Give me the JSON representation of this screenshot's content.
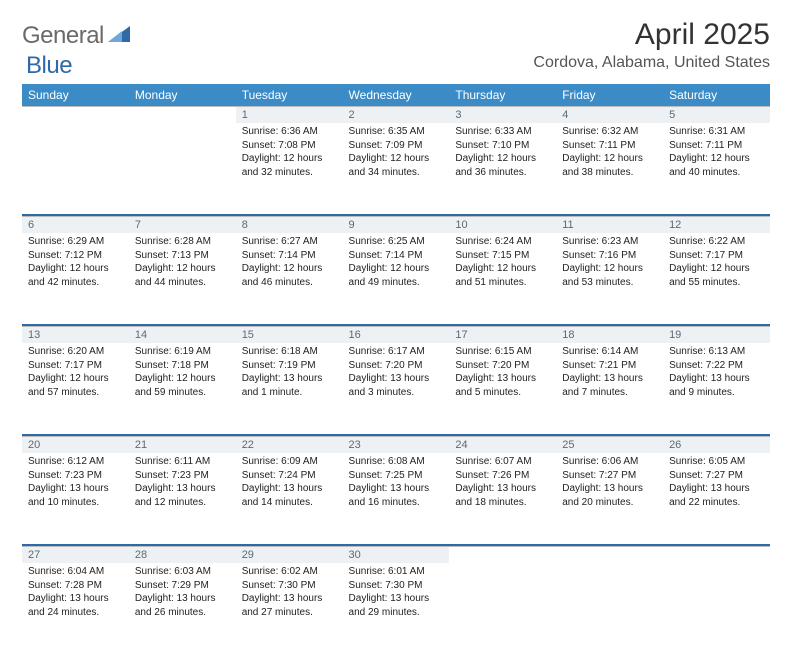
{
  "brand": {
    "part1": "General",
    "part2": "Blue"
  },
  "header": {
    "month_title": "April 2025",
    "location": "Cordova, Alabama, United States"
  },
  "theme": {
    "header_bg": "#3b8bc7",
    "daynum_bg": "#eef1f3",
    "daynum_text": "#5a6a78",
    "week_sep": "#2f6aa8",
    "logo_gray": "#6a6a6a",
    "logo_blue": "#2f6aa8",
    "cell_font_size": 10
  },
  "weekdays": [
    "Sunday",
    "Monday",
    "Tuesday",
    "Wednesday",
    "Thursday",
    "Friday",
    "Saturday"
  ],
  "weeks": [
    [
      null,
      null,
      {
        "n": "1",
        "sr": "Sunrise: 6:36 AM",
        "ss": "Sunset: 7:08 PM",
        "dl": "Daylight: 12 hours and 32 minutes."
      },
      {
        "n": "2",
        "sr": "Sunrise: 6:35 AM",
        "ss": "Sunset: 7:09 PM",
        "dl": "Daylight: 12 hours and 34 minutes."
      },
      {
        "n": "3",
        "sr": "Sunrise: 6:33 AM",
        "ss": "Sunset: 7:10 PM",
        "dl": "Daylight: 12 hours and 36 minutes."
      },
      {
        "n": "4",
        "sr": "Sunrise: 6:32 AM",
        "ss": "Sunset: 7:11 PM",
        "dl": "Daylight: 12 hours and 38 minutes."
      },
      {
        "n": "5",
        "sr": "Sunrise: 6:31 AM",
        "ss": "Sunset: 7:11 PM",
        "dl": "Daylight: 12 hours and 40 minutes."
      }
    ],
    [
      {
        "n": "6",
        "sr": "Sunrise: 6:29 AM",
        "ss": "Sunset: 7:12 PM",
        "dl": "Daylight: 12 hours and 42 minutes."
      },
      {
        "n": "7",
        "sr": "Sunrise: 6:28 AM",
        "ss": "Sunset: 7:13 PM",
        "dl": "Daylight: 12 hours and 44 minutes."
      },
      {
        "n": "8",
        "sr": "Sunrise: 6:27 AM",
        "ss": "Sunset: 7:14 PM",
        "dl": "Daylight: 12 hours and 46 minutes."
      },
      {
        "n": "9",
        "sr": "Sunrise: 6:25 AM",
        "ss": "Sunset: 7:14 PM",
        "dl": "Daylight: 12 hours and 49 minutes."
      },
      {
        "n": "10",
        "sr": "Sunrise: 6:24 AM",
        "ss": "Sunset: 7:15 PM",
        "dl": "Daylight: 12 hours and 51 minutes."
      },
      {
        "n": "11",
        "sr": "Sunrise: 6:23 AM",
        "ss": "Sunset: 7:16 PM",
        "dl": "Daylight: 12 hours and 53 minutes."
      },
      {
        "n": "12",
        "sr": "Sunrise: 6:22 AM",
        "ss": "Sunset: 7:17 PM",
        "dl": "Daylight: 12 hours and 55 minutes."
      }
    ],
    [
      {
        "n": "13",
        "sr": "Sunrise: 6:20 AM",
        "ss": "Sunset: 7:17 PM",
        "dl": "Daylight: 12 hours and 57 minutes."
      },
      {
        "n": "14",
        "sr": "Sunrise: 6:19 AM",
        "ss": "Sunset: 7:18 PM",
        "dl": "Daylight: 12 hours and 59 minutes."
      },
      {
        "n": "15",
        "sr": "Sunrise: 6:18 AM",
        "ss": "Sunset: 7:19 PM",
        "dl": "Daylight: 13 hours and 1 minute."
      },
      {
        "n": "16",
        "sr": "Sunrise: 6:17 AM",
        "ss": "Sunset: 7:20 PM",
        "dl": "Daylight: 13 hours and 3 minutes."
      },
      {
        "n": "17",
        "sr": "Sunrise: 6:15 AM",
        "ss": "Sunset: 7:20 PM",
        "dl": "Daylight: 13 hours and 5 minutes."
      },
      {
        "n": "18",
        "sr": "Sunrise: 6:14 AM",
        "ss": "Sunset: 7:21 PM",
        "dl": "Daylight: 13 hours and 7 minutes."
      },
      {
        "n": "19",
        "sr": "Sunrise: 6:13 AM",
        "ss": "Sunset: 7:22 PM",
        "dl": "Daylight: 13 hours and 9 minutes."
      }
    ],
    [
      {
        "n": "20",
        "sr": "Sunrise: 6:12 AM",
        "ss": "Sunset: 7:23 PM",
        "dl": "Daylight: 13 hours and 10 minutes."
      },
      {
        "n": "21",
        "sr": "Sunrise: 6:11 AM",
        "ss": "Sunset: 7:23 PM",
        "dl": "Daylight: 13 hours and 12 minutes."
      },
      {
        "n": "22",
        "sr": "Sunrise: 6:09 AM",
        "ss": "Sunset: 7:24 PM",
        "dl": "Daylight: 13 hours and 14 minutes."
      },
      {
        "n": "23",
        "sr": "Sunrise: 6:08 AM",
        "ss": "Sunset: 7:25 PM",
        "dl": "Daylight: 13 hours and 16 minutes."
      },
      {
        "n": "24",
        "sr": "Sunrise: 6:07 AM",
        "ss": "Sunset: 7:26 PM",
        "dl": "Daylight: 13 hours and 18 minutes."
      },
      {
        "n": "25",
        "sr": "Sunrise: 6:06 AM",
        "ss": "Sunset: 7:27 PM",
        "dl": "Daylight: 13 hours and 20 minutes."
      },
      {
        "n": "26",
        "sr": "Sunrise: 6:05 AM",
        "ss": "Sunset: 7:27 PM",
        "dl": "Daylight: 13 hours and 22 minutes."
      }
    ],
    [
      {
        "n": "27",
        "sr": "Sunrise: 6:04 AM",
        "ss": "Sunset: 7:28 PM",
        "dl": "Daylight: 13 hours and 24 minutes."
      },
      {
        "n": "28",
        "sr": "Sunrise: 6:03 AM",
        "ss": "Sunset: 7:29 PM",
        "dl": "Daylight: 13 hours and 26 minutes."
      },
      {
        "n": "29",
        "sr": "Sunrise: 6:02 AM",
        "ss": "Sunset: 7:30 PM",
        "dl": "Daylight: 13 hours and 27 minutes."
      },
      {
        "n": "30",
        "sr": "Sunrise: 6:01 AM",
        "ss": "Sunset: 7:30 PM",
        "dl": "Daylight: 13 hours and 29 minutes."
      },
      null,
      null,
      null
    ]
  ]
}
